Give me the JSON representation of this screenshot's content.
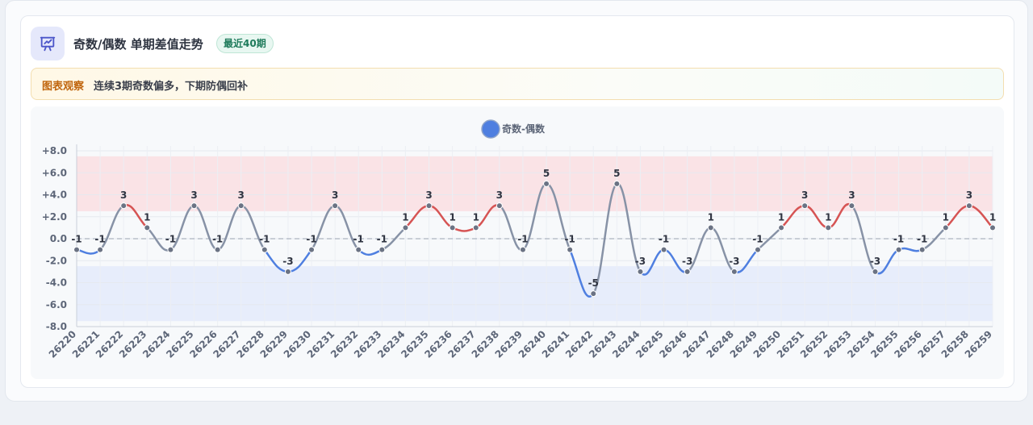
{
  "header": {
    "title": "奇数/偶数 单期差值走势",
    "badge": "最近40期",
    "icon": "presentation-chart-icon"
  },
  "note": {
    "label": "图表观察",
    "text": "连续3期奇数偏多，下期防偶回补"
  },
  "chart_data": {
    "type": "line",
    "legend": {
      "name": "奇数-偶数",
      "placement": "top-center"
    },
    "categories": [
      "26220",
      "26221",
      "26222",
      "26223",
      "26224",
      "26225",
      "26226",
      "26227",
      "26228",
      "26229",
      "26230",
      "26231",
      "26232",
      "26233",
      "26234",
      "26235",
      "26236",
      "26237",
      "26238",
      "26239",
      "26240",
      "26241",
      "26242",
      "26243",
      "26244",
      "26245",
      "26246",
      "26247",
      "26248",
      "26249",
      "26250",
      "26251",
      "26252",
      "26253",
      "26254",
      "26255",
      "26256",
      "26257",
      "26258",
      "26259"
    ],
    "series": [
      {
        "name": "奇数-偶数",
        "values": [
          -1,
          -1,
          3,
          1,
          -1,
          3,
          -1,
          3,
          -1,
          -3,
          -1,
          3,
          -1,
          -1,
          1,
          3,
          1,
          1,
          3,
          -1,
          5,
          -1,
          -5,
          5,
          -3,
          -1,
          -3,
          1,
          -3,
          -1,
          1,
          3,
          1,
          3,
          -3,
          -1,
          -1,
          1,
          3,
          1
        ]
      }
    ],
    "ylim": [
      -8,
      8
    ],
    "yticks": [
      "+8.0",
      "+6.0",
      "+4.0",
      "+2.0",
      "0.0",
      "-2.0",
      "-4.0",
      "-6.0",
      "-8.0"
    ],
    "bands": [
      {
        "from": 2.5,
        "to": 7.5,
        "color": "#fae3e6"
      },
      {
        "from": -7.5,
        "to": -2.5,
        "color": "#e7edfb"
      }
    ],
    "grid": true,
    "zero_line": "dashed",
    "colors": {
      "positive": "#d65454",
      "negative": "#4f7fe0",
      "neutral": "#8792a6",
      "point": "#6b7384",
      "legend": "#4f7fe0"
    }
  }
}
